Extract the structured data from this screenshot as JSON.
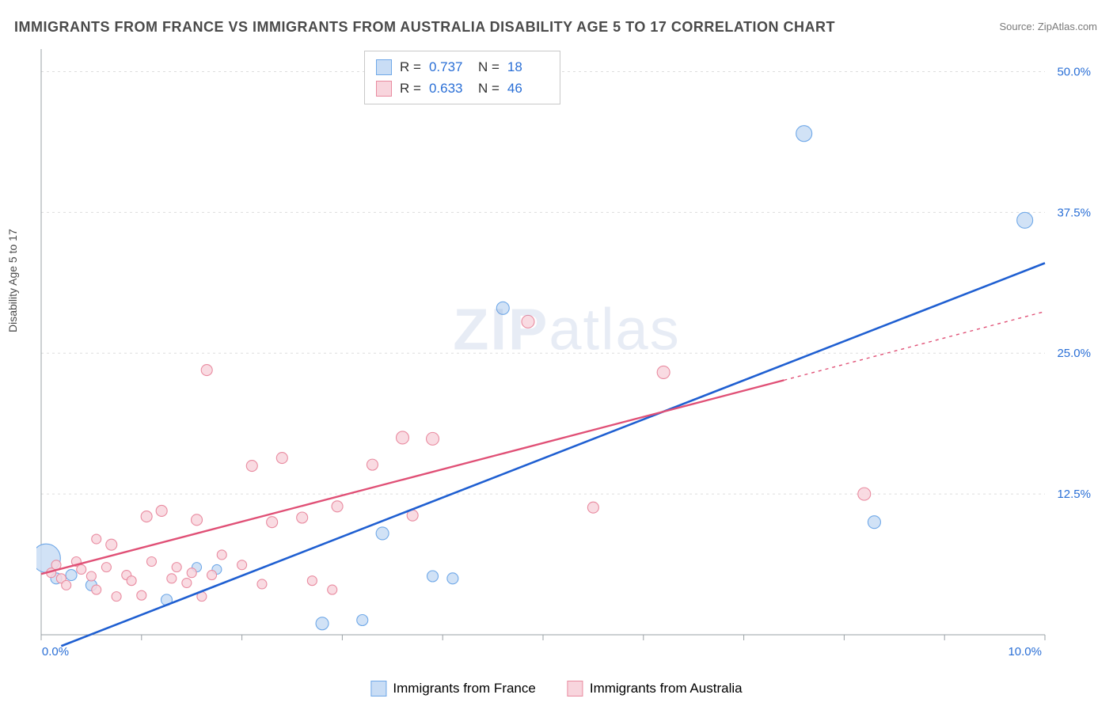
{
  "title": "IMMIGRANTS FROM FRANCE VS IMMIGRANTS FROM AUSTRALIA DISABILITY AGE 5 TO 17 CORRELATION CHART",
  "source": "Source: ZipAtlas.com",
  "y_axis_label": "Disability Age 5 to 17",
  "watermark_a": "ZIP",
  "watermark_b": "atlas",
  "chart": {
    "type": "scatter",
    "xlim": [
      0,
      10
    ],
    "ylim": [
      0,
      52
    ],
    "x_ticks": [
      0,
      1,
      2,
      3,
      4,
      5,
      6,
      7,
      8,
      9,
      10
    ],
    "x_tick_labels_shown": {
      "0": "0.0%",
      "10": "10.0%"
    },
    "y_ticks": [
      12.5,
      25.0,
      37.5,
      50.0
    ],
    "y_tick_labels": [
      "12.5%",
      "25.0%",
      "37.5%",
      "50.0%"
    ],
    "background_color": "#ffffff",
    "grid_color": "#dddddd",
    "grid_dash": "3,4",
    "tick_label_color": "#2a6fd6",
    "axis_line_color": "#9aa0a6"
  },
  "series": [
    {
      "name": "Immigrants from France",
      "color_fill": "#c9ddf5",
      "color_stroke": "#6fa8e8",
      "trend_color": "#1f5fd1",
      "trend_width": 2.6,
      "trend_dash_ext": "4,5",
      "r": "0.737",
      "n": "18",
      "trend": {
        "x1": 0.2,
        "y1": -1.0,
        "x2": 10.0,
        "y2": 33.0
      },
      "points": [
        {
          "x": 0.05,
          "y": 6.8,
          "r": 18
        },
        {
          "x": 0.15,
          "y": 5.0,
          "r": 7
        },
        {
          "x": 0.3,
          "y": 5.3,
          "r": 7
        },
        {
          "x": 0.5,
          "y": 4.4,
          "r": 7
        },
        {
          "x": 1.25,
          "y": 3.1,
          "r": 7
        },
        {
          "x": 1.55,
          "y": 6.0,
          "r": 6
        },
        {
          "x": 1.75,
          "y": 5.8,
          "r": 6
        },
        {
          "x": 2.8,
          "y": 1.0,
          "r": 8
        },
        {
          "x": 3.2,
          "y": 1.3,
          "r": 7
        },
        {
          "x": 3.4,
          "y": 9.0,
          "r": 8
        },
        {
          "x": 3.9,
          "y": 5.2,
          "r": 7
        },
        {
          "x": 4.1,
          "y": 5.0,
          "r": 7
        },
        {
          "x": 4.6,
          "y": 29.0,
          "r": 8
        },
        {
          "x": 7.6,
          "y": 44.5,
          "r": 10
        },
        {
          "x": 8.3,
          "y": 10.0,
          "r": 8
        },
        {
          "x": 9.8,
          "y": 36.8,
          "r": 10
        }
      ]
    },
    {
      "name": "Immigrants from Australia",
      "color_fill": "#f8d5dd",
      "color_stroke": "#e98ba0",
      "trend_color": "#e05076",
      "trend_width": 2.4,
      "trend_dash_ext": "4,5",
      "r": "0.633",
      "n": "46",
      "trend": {
        "x1": 0.0,
        "y1": 5.4,
        "x2": 7.4,
        "y2": 22.6
      },
      "trend_ext": {
        "x1": 7.4,
        "y1": 22.6,
        "x2": 10.0,
        "y2": 28.7
      },
      "points": [
        {
          "x": 0.1,
          "y": 5.5,
          "r": 6
        },
        {
          "x": 0.15,
          "y": 6.2,
          "r": 6
        },
        {
          "x": 0.2,
          "y": 5.0,
          "r": 6
        },
        {
          "x": 0.25,
          "y": 4.4,
          "r": 6
        },
        {
          "x": 0.35,
          "y": 6.5,
          "r": 6
        },
        {
          "x": 0.4,
          "y": 5.8,
          "r": 6
        },
        {
          "x": 0.5,
          "y": 5.2,
          "r": 6
        },
        {
          "x": 0.55,
          "y": 8.5,
          "r": 6
        },
        {
          "x": 0.55,
          "y": 4.0,
          "r": 6
        },
        {
          "x": 0.65,
          "y": 6.0,
          "r": 6
        },
        {
          "x": 0.7,
          "y": 8.0,
          "r": 7
        },
        {
          "x": 0.75,
          "y": 3.4,
          "r": 6
        },
        {
          "x": 0.85,
          "y": 5.3,
          "r": 6
        },
        {
          "x": 0.9,
          "y": 4.8,
          "r": 6
        },
        {
          "x": 1.0,
          "y": 3.5,
          "r": 6
        },
        {
          "x": 1.05,
          "y": 10.5,
          "r": 7
        },
        {
          "x": 1.1,
          "y": 6.5,
          "r": 6
        },
        {
          "x": 1.2,
          "y": 11.0,
          "r": 7
        },
        {
          "x": 1.3,
          "y": 5.0,
          "r": 6
        },
        {
          "x": 1.35,
          "y": 6.0,
          "r": 6
        },
        {
          "x": 1.45,
          "y": 4.6,
          "r": 6
        },
        {
          "x": 1.5,
          "y": 5.5,
          "r": 6
        },
        {
          "x": 1.55,
          "y": 10.2,
          "r": 7
        },
        {
          "x": 1.6,
          "y": 3.4,
          "r": 6
        },
        {
          "x": 1.65,
          "y": 23.5,
          "r": 7
        },
        {
          "x": 1.7,
          "y": 5.3,
          "r": 6
        },
        {
          "x": 1.8,
          "y": 7.1,
          "r": 6
        },
        {
          "x": 2.0,
          "y": 6.2,
          "r": 6
        },
        {
          "x": 2.1,
          "y": 15.0,
          "r": 7
        },
        {
          "x": 2.2,
          "y": 4.5,
          "r": 6
        },
        {
          "x": 2.3,
          "y": 10.0,
          "r": 7
        },
        {
          "x": 2.4,
          "y": 15.7,
          "r": 7
        },
        {
          "x": 2.6,
          "y": 10.4,
          "r": 7
        },
        {
          "x": 2.7,
          "y": 4.8,
          "r": 6
        },
        {
          "x": 2.9,
          "y": 4.0,
          "r": 6
        },
        {
          "x": 2.95,
          "y": 11.4,
          "r": 7
        },
        {
          "x": 3.3,
          "y": 15.1,
          "r": 7
        },
        {
          "x": 3.6,
          "y": 17.5,
          "r": 8
        },
        {
          "x": 3.7,
          "y": 10.6,
          "r": 7
        },
        {
          "x": 3.9,
          "y": 17.4,
          "r": 8
        },
        {
          "x": 4.85,
          "y": 27.8,
          "r": 8
        },
        {
          "x": 5.5,
          "y": 11.3,
          "r": 7
        },
        {
          "x": 6.2,
          "y": 23.3,
          "r": 8
        },
        {
          "x": 8.2,
          "y": 12.5,
          "r": 8
        }
      ]
    }
  ],
  "legend_bottom": [
    {
      "label": "Immigrants from France",
      "fill": "#c9ddf5",
      "stroke": "#6fa8e8"
    },
    {
      "label": "Immigrants from Australia",
      "fill": "#f8d5dd",
      "stroke": "#e98ba0"
    }
  ],
  "legend_top_labels": {
    "r": "R =",
    "n": "N ="
  }
}
